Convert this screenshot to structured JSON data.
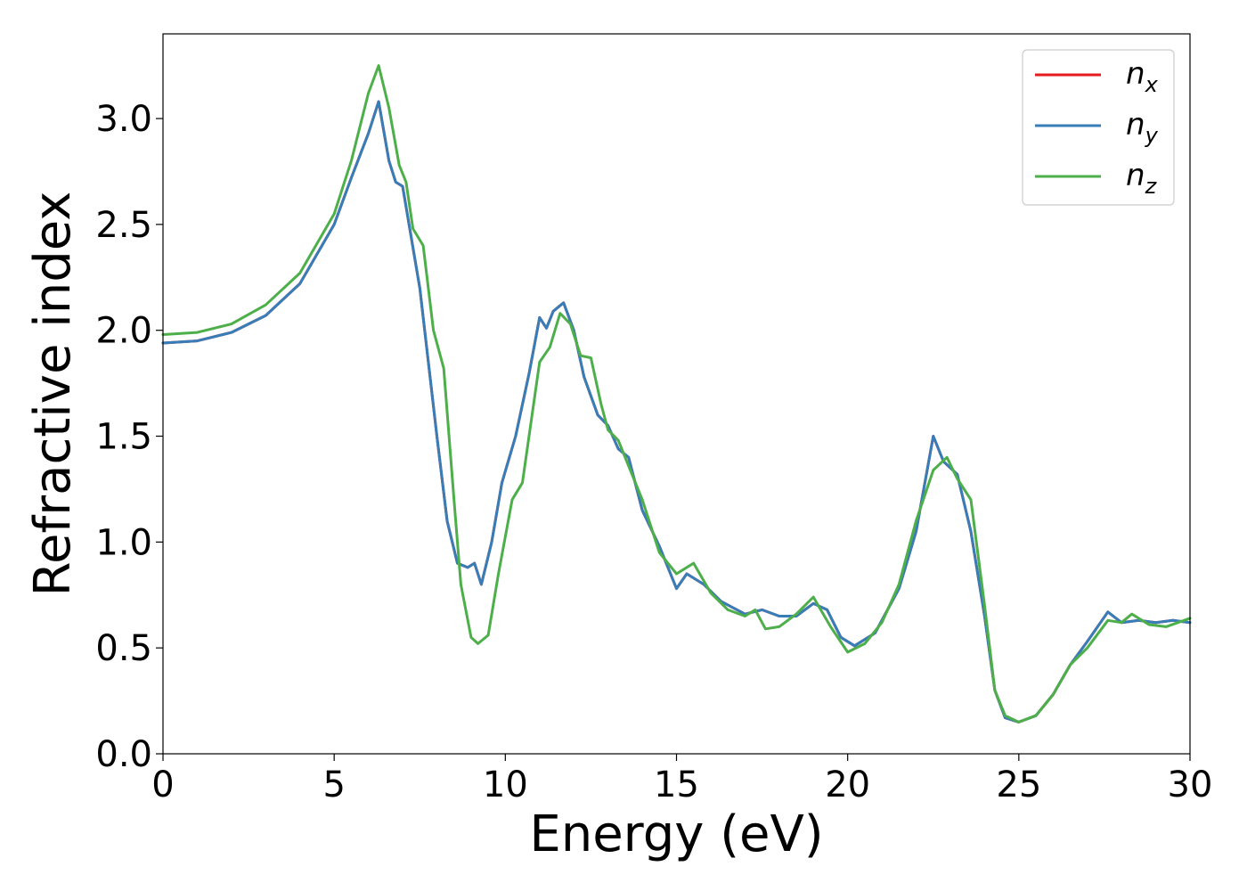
{
  "chart_data": {
    "type": "line",
    "xlabel": "Energy (eV)",
    "ylabel": "Refractive index",
    "xlim": [
      0,
      30
    ],
    "ylim": [
      0,
      3.4
    ],
    "xticks": [
      0,
      5,
      10,
      15,
      20,
      25,
      30
    ],
    "xtick_labels": [
      "0",
      "5",
      "10",
      "15",
      "20",
      "25",
      "30"
    ],
    "yticks": [
      0.0,
      0.5,
      1.0,
      1.5,
      2.0,
      2.5,
      3.0
    ],
    "ytick_labels": [
      "0.0",
      "0.5",
      "1.0",
      "1.5",
      "2.0",
      "2.5",
      "3.0"
    ],
    "grid": false,
    "legend_position": "top-right",
    "series": [
      {
        "name": "n",
        "subscript": "x",
        "color": "#e41a1c",
        "points": [
          [
            0,
            1.94
          ],
          [
            1,
            1.95
          ],
          [
            2,
            1.99
          ],
          [
            3,
            2.07
          ],
          [
            4,
            2.22
          ],
          [
            5,
            2.5
          ],
          [
            5.5,
            2.72
          ],
          [
            6,
            2.93
          ],
          [
            6.3,
            3.08
          ],
          [
            6.6,
            2.8
          ],
          [
            6.8,
            2.7
          ],
          [
            7,
            2.68
          ],
          [
            7.5,
            2.2
          ],
          [
            8,
            1.5
          ],
          [
            8.3,
            1.1
          ],
          [
            8.6,
            0.9
          ],
          [
            8.9,
            0.88
          ],
          [
            9.1,
            0.9
          ],
          [
            9.3,
            0.8
          ],
          [
            9.6,
            1.0
          ],
          [
            9.9,
            1.28
          ],
          [
            10.3,
            1.5
          ],
          [
            10.7,
            1.8
          ],
          [
            11,
            2.06
          ],
          [
            11.2,
            2.01
          ],
          [
            11.4,
            2.09
          ],
          [
            11.7,
            2.13
          ],
          [
            12,
            2.0
          ],
          [
            12.3,
            1.78
          ],
          [
            12.7,
            1.6
          ],
          [
            13,
            1.55
          ],
          [
            13.3,
            1.44
          ],
          [
            13.6,
            1.4
          ],
          [
            14,
            1.15
          ],
          [
            14.5,
            0.98
          ],
          [
            15,
            0.78
          ],
          [
            15.3,
            0.85
          ],
          [
            15.8,
            0.8
          ],
          [
            16.3,
            0.72
          ],
          [
            17,
            0.66
          ],
          [
            17.5,
            0.68
          ],
          [
            18,
            0.65
          ],
          [
            18.5,
            0.65
          ],
          [
            19,
            0.71
          ],
          [
            19.4,
            0.68
          ],
          [
            19.8,
            0.55
          ],
          [
            20.2,
            0.51
          ],
          [
            20.8,
            0.57
          ],
          [
            21.5,
            0.78
          ],
          [
            22,
            1.05
          ],
          [
            22.5,
            1.5
          ],
          [
            22.8,
            1.38
          ],
          [
            23.2,
            1.32
          ],
          [
            23.6,
            1.05
          ],
          [
            24,
            0.65
          ],
          [
            24.3,
            0.3
          ],
          [
            24.6,
            0.17
          ],
          [
            25,
            0.15
          ],
          [
            25.5,
            0.18
          ],
          [
            26,
            0.28
          ],
          [
            26.5,
            0.42
          ],
          [
            27,
            0.53
          ],
          [
            27.6,
            0.67
          ],
          [
            28,
            0.62
          ],
          [
            28.5,
            0.63
          ],
          [
            29,
            0.62
          ],
          [
            29.5,
            0.63
          ],
          [
            30,
            0.62
          ]
        ]
      },
      {
        "name": "n",
        "subscript": "y",
        "color": "#377eb8",
        "points": [
          [
            0,
            1.94
          ],
          [
            1,
            1.95
          ],
          [
            2,
            1.99
          ],
          [
            3,
            2.07
          ],
          [
            4,
            2.22
          ],
          [
            5,
            2.5
          ],
          [
            5.5,
            2.72
          ],
          [
            6,
            2.93
          ],
          [
            6.3,
            3.08
          ],
          [
            6.6,
            2.8
          ],
          [
            6.8,
            2.7
          ],
          [
            7,
            2.68
          ],
          [
            7.5,
            2.2
          ],
          [
            8,
            1.5
          ],
          [
            8.3,
            1.1
          ],
          [
            8.6,
            0.9
          ],
          [
            8.9,
            0.88
          ],
          [
            9.1,
            0.9
          ],
          [
            9.3,
            0.8
          ],
          [
            9.6,
            1.0
          ],
          [
            9.9,
            1.28
          ],
          [
            10.3,
            1.5
          ],
          [
            10.7,
            1.8
          ],
          [
            11,
            2.06
          ],
          [
            11.2,
            2.01
          ],
          [
            11.4,
            2.09
          ],
          [
            11.7,
            2.13
          ],
          [
            12,
            2.0
          ],
          [
            12.3,
            1.78
          ],
          [
            12.7,
            1.6
          ],
          [
            13,
            1.55
          ],
          [
            13.3,
            1.44
          ],
          [
            13.6,
            1.4
          ],
          [
            14,
            1.15
          ],
          [
            14.5,
            0.98
          ],
          [
            15,
            0.78
          ],
          [
            15.3,
            0.85
          ],
          [
            15.8,
            0.8
          ],
          [
            16.3,
            0.72
          ],
          [
            17,
            0.66
          ],
          [
            17.5,
            0.68
          ],
          [
            18,
            0.65
          ],
          [
            18.5,
            0.65
          ],
          [
            19,
            0.71
          ],
          [
            19.4,
            0.68
          ],
          [
            19.8,
            0.55
          ],
          [
            20.2,
            0.51
          ],
          [
            20.8,
            0.57
          ],
          [
            21.5,
            0.78
          ],
          [
            22,
            1.05
          ],
          [
            22.5,
            1.5
          ],
          [
            22.8,
            1.38
          ],
          [
            23.2,
            1.32
          ],
          [
            23.6,
            1.05
          ],
          [
            24,
            0.65
          ],
          [
            24.3,
            0.3
          ],
          [
            24.6,
            0.17
          ],
          [
            25,
            0.15
          ],
          [
            25.5,
            0.18
          ],
          [
            26,
            0.28
          ],
          [
            26.5,
            0.42
          ],
          [
            27,
            0.53
          ],
          [
            27.6,
            0.67
          ],
          [
            28,
            0.62
          ],
          [
            28.5,
            0.63
          ],
          [
            29,
            0.62
          ],
          [
            29.5,
            0.63
          ],
          [
            30,
            0.62
          ]
        ]
      },
      {
        "name": "n",
        "subscript": "z",
        "color": "#4daf4a",
        "points": [
          [
            0,
            1.98
          ],
          [
            1,
            1.99
          ],
          [
            2,
            2.03
          ],
          [
            3,
            2.12
          ],
          [
            4,
            2.27
          ],
          [
            5,
            2.55
          ],
          [
            5.5,
            2.8
          ],
          [
            6,
            3.12
          ],
          [
            6.3,
            3.25
          ],
          [
            6.6,
            3.05
          ],
          [
            6.9,
            2.78
          ],
          [
            7.1,
            2.7
          ],
          [
            7.3,
            2.48
          ],
          [
            7.6,
            2.4
          ],
          [
            7.9,
            2.0
          ],
          [
            8.2,
            1.82
          ],
          [
            8.5,
            1.2
          ],
          [
            8.7,
            0.8
          ],
          [
            9,
            0.55
          ],
          [
            9.2,
            0.52
          ],
          [
            9.5,
            0.56
          ],
          [
            9.8,
            0.85
          ],
          [
            10.2,
            1.2
          ],
          [
            10.5,
            1.28
          ],
          [
            11,
            1.85
          ],
          [
            11.3,
            1.92
          ],
          [
            11.6,
            2.08
          ],
          [
            11.9,
            2.03
          ],
          [
            12.2,
            1.88
          ],
          [
            12.5,
            1.87
          ],
          [
            12.8,
            1.65
          ],
          [
            13,
            1.53
          ],
          [
            13.3,
            1.48
          ],
          [
            13.7,
            1.32
          ],
          [
            14,
            1.2
          ],
          [
            14.5,
            0.95
          ],
          [
            15,
            0.85
          ],
          [
            15.5,
            0.9
          ],
          [
            16,
            0.76
          ],
          [
            16.5,
            0.68
          ],
          [
            17,
            0.65
          ],
          [
            17.3,
            0.68
          ],
          [
            17.6,
            0.59
          ],
          [
            18,
            0.6
          ],
          [
            18.5,
            0.66
          ],
          [
            19,
            0.74
          ],
          [
            19.5,
            0.6
          ],
          [
            20,
            0.48
          ],
          [
            20.5,
            0.52
          ],
          [
            21,
            0.62
          ],
          [
            21.5,
            0.8
          ],
          [
            22,
            1.1
          ],
          [
            22.5,
            1.34
          ],
          [
            22.9,
            1.4
          ],
          [
            23.2,
            1.3
          ],
          [
            23.6,
            1.2
          ],
          [
            24,
            0.7
          ],
          [
            24.3,
            0.3
          ],
          [
            24.6,
            0.18
          ],
          [
            25,
            0.15
          ],
          [
            25.5,
            0.18
          ],
          [
            26,
            0.28
          ],
          [
            26.5,
            0.42
          ],
          [
            27,
            0.5
          ],
          [
            27.6,
            0.63
          ],
          [
            28,
            0.62
          ],
          [
            28.3,
            0.66
          ],
          [
            28.8,
            0.61
          ],
          [
            29.3,
            0.6
          ],
          [
            30,
            0.64
          ]
        ]
      }
    ]
  }
}
